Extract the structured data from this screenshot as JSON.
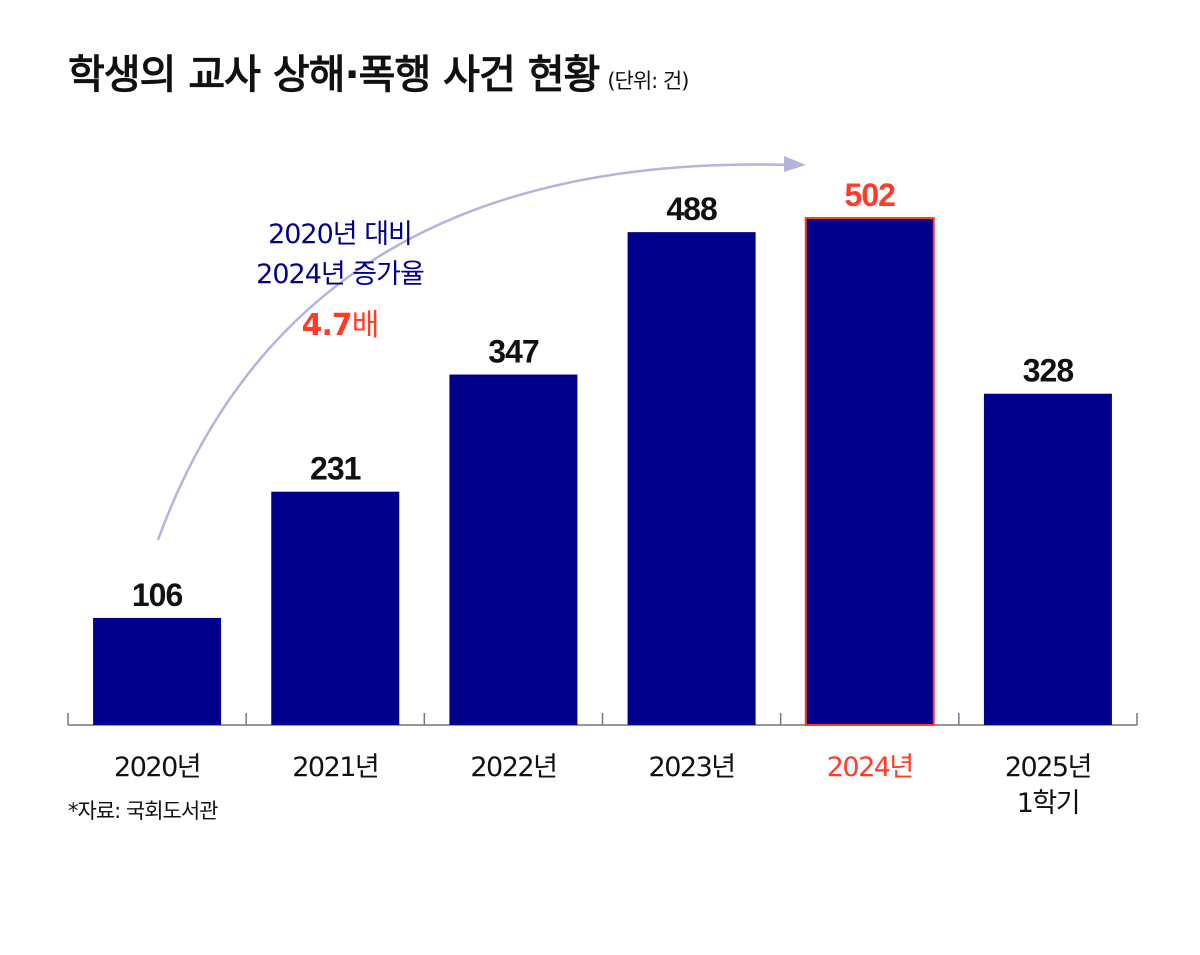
{
  "chart_data": {
    "type": "bar",
    "title": "학생의 교사 상해·폭행 사건 현황",
    "unit": "(단위: 건)",
    "categories": [
      "2020년",
      "2021년",
      "2022년",
      "2023년",
      "2024년",
      "2025년\n1학기"
    ],
    "values": [
      106,
      231,
      347,
      488,
      502,
      328
    ],
    "highlight_index": 4,
    "ylim": [
      0,
      502
    ],
    "grid": false,
    "colors": {
      "bar": "#00008b",
      "highlight": "#ff3c28",
      "arrow": "#b4b4dc",
      "text": "#111111"
    },
    "annotation": {
      "line1": "2020년 대비",
      "line2": "2024년 증가율",
      "value": "4.7",
      "value_suffix": "배"
    },
    "source": "*자료: 국회도서관"
  }
}
